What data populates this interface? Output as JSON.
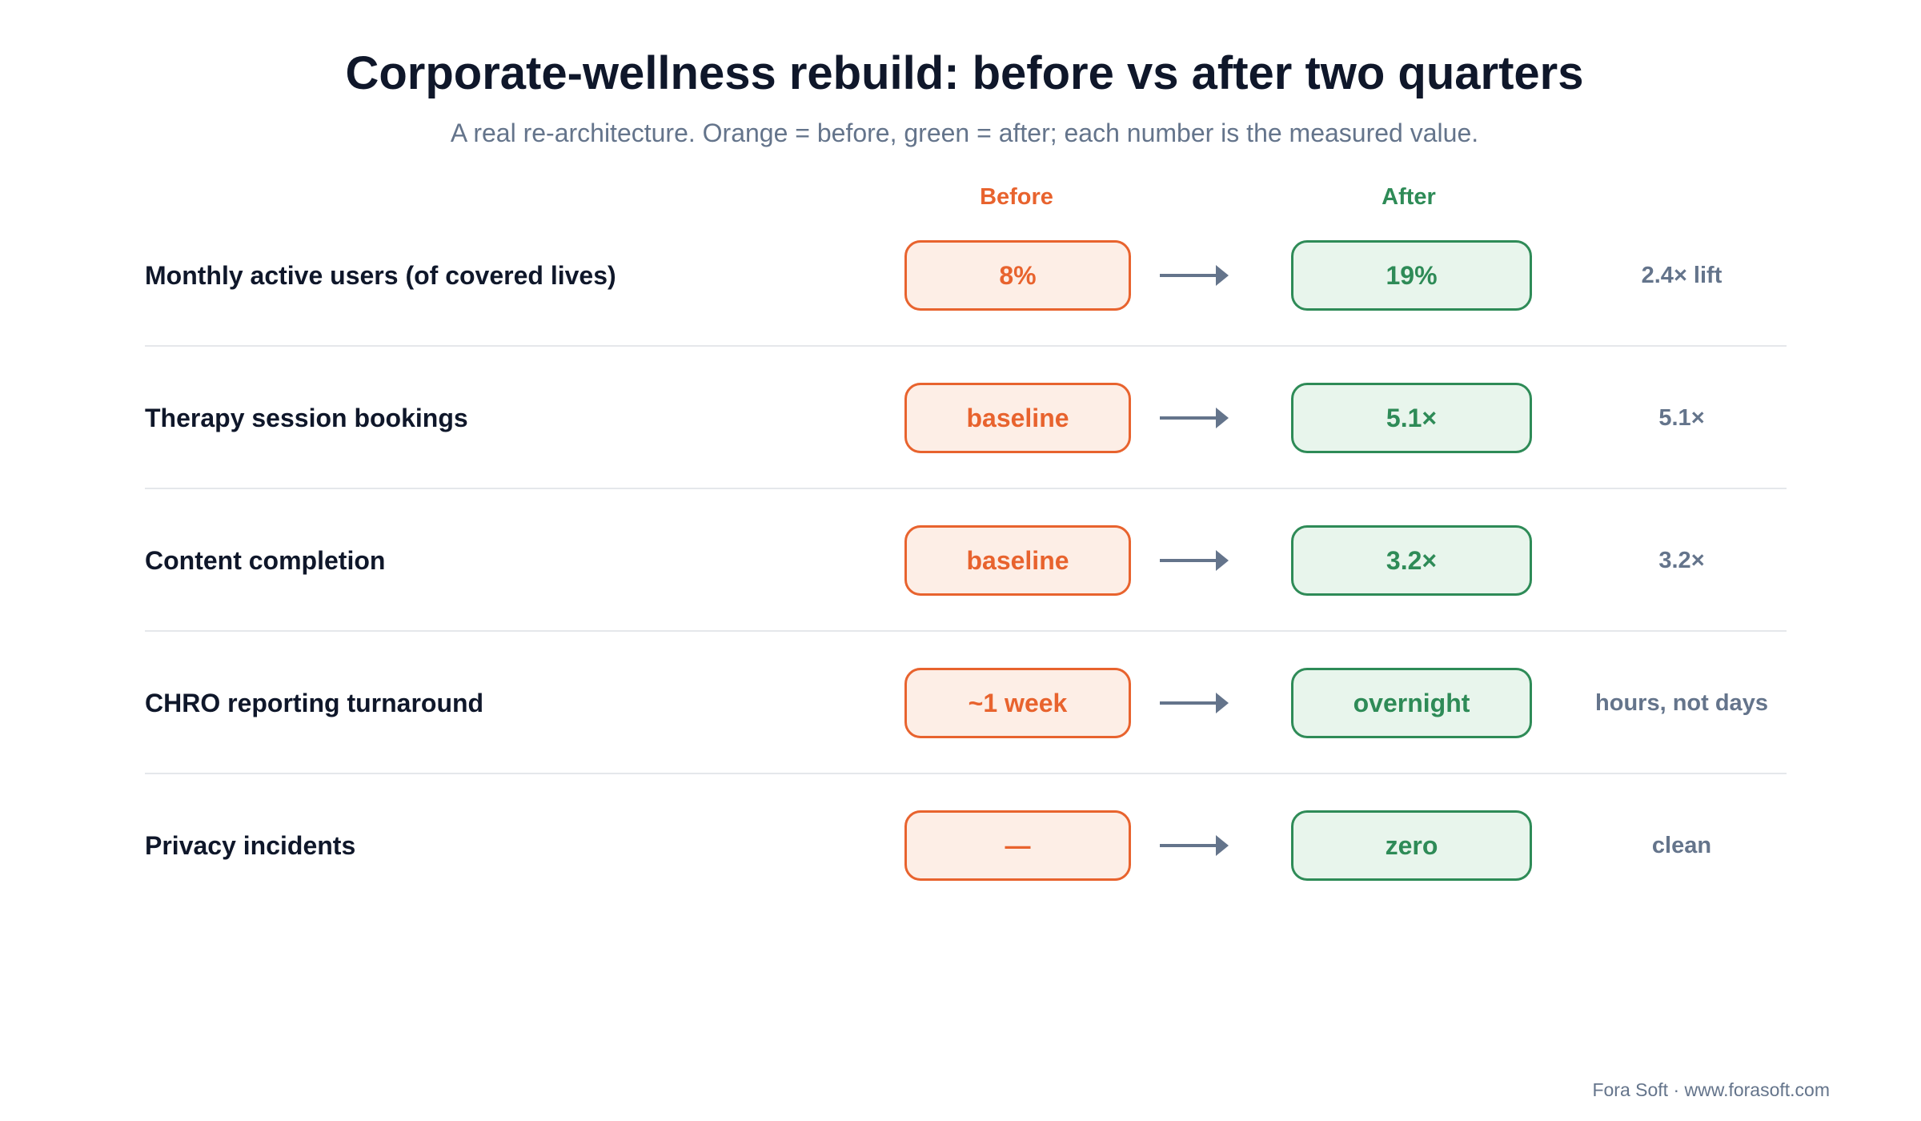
{
  "title": "Corporate-wellness rebuild: before vs after two quarters",
  "subtitle": "A real re-architecture. Orange = before, green = after; each number is the measured value.",
  "columns": {
    "before": "Before",
    "after": "After"
  },
  "colors": {
    "before": "#e8632e",
    "after": "#2e8b57",
    "arrow": "#64748b"
  },
  "rows": [
    {
      "label": "Monthly active users (of covered lives)",
      "before": "8%",
      "after": "19%",
      "note": "2.4× lift"
    },
    {
      "label": "Therapy session bookings",
      "before": "baseline",
      "after": "5.1×",
      "note": "5.1×"
    },
    {
      "label": "Content completion",
      "before": "baseline",
      "after": "3.2×",
      "note": "3.2×"
    },
    {
      "label": "CHRO reporting turnaround",
      "before": "~1 week",
      "after": "overnight",
      "note": "hours, not days"
    },
    {
      "label": "Privacy incidents",
      "before": "—",
      "after": "zero",
      "note": "clean"
    }
  ],
  "footer": "Fora Soft · www.forasoft.com"
}
